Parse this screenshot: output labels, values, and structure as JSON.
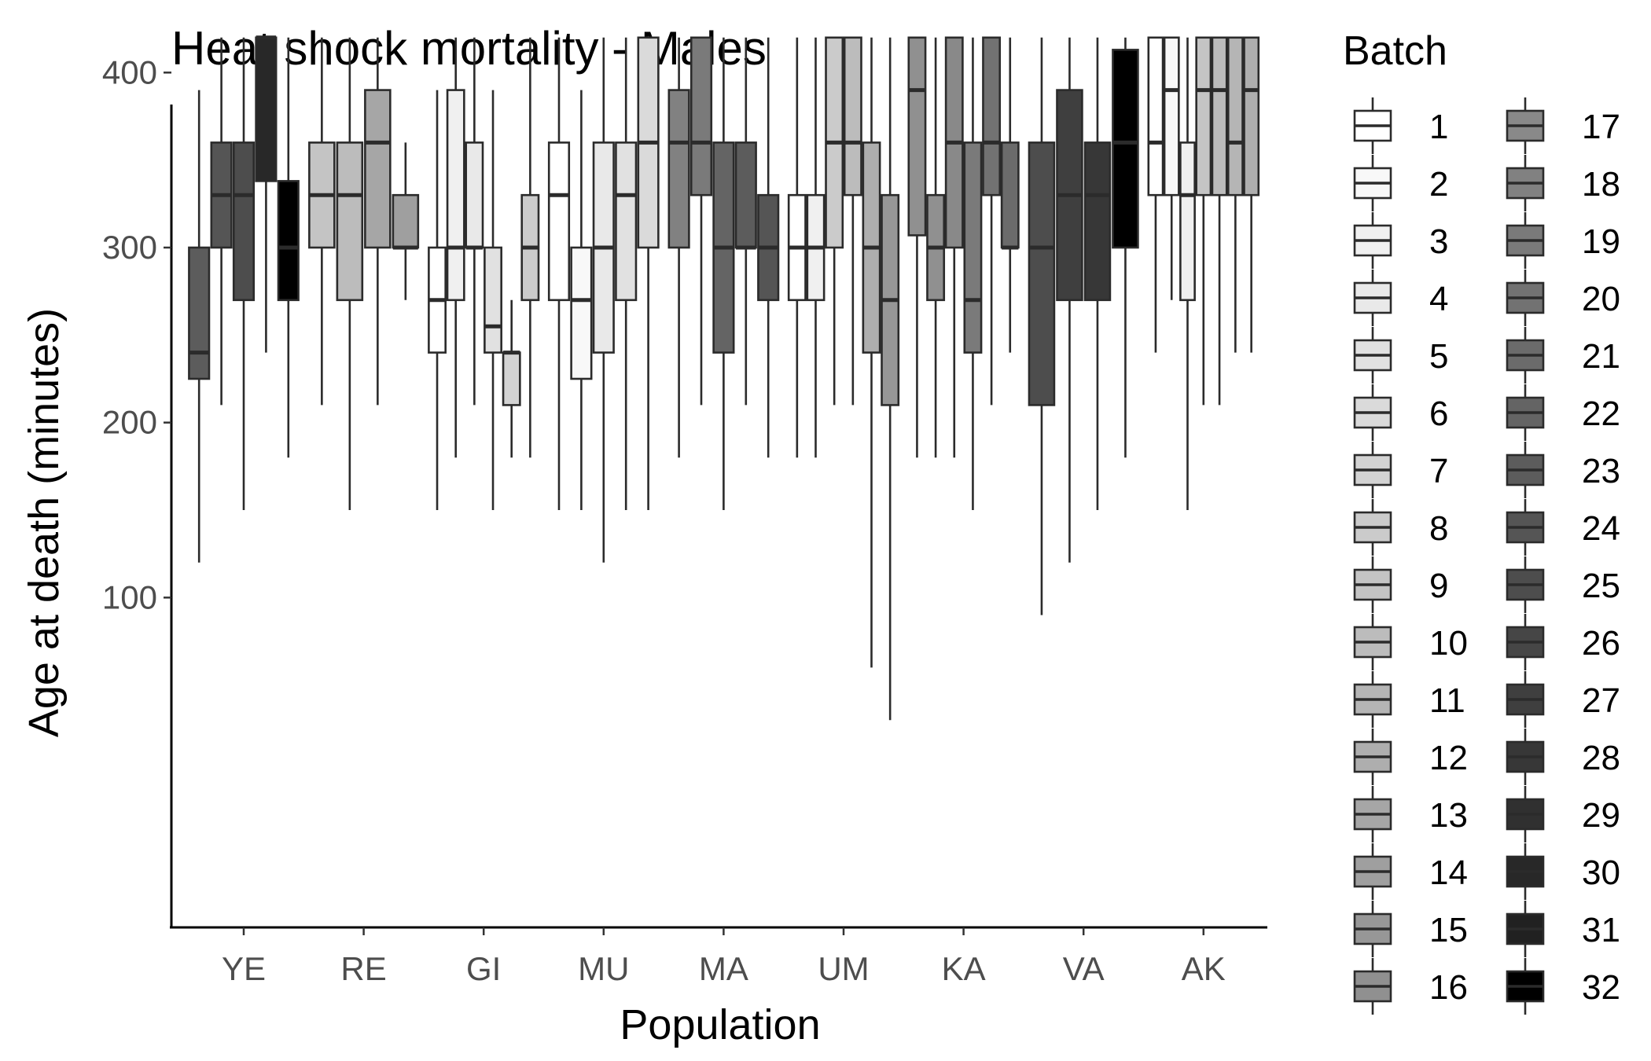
{
  "chart_data": {
    "type": "boxplot",
    "title": "Heat shock mortality - Males",
    "xlabel": "Population",
    "ylabel": "Age at death (minutes)",
    "categories": [
      "YE",
      "RE",
      "GI",
      "MU",
      "MA",
      "UM",
      "KA",
      "VA",
      "AK"
    ],
    "y_ticks": [
      100,
      200,
      300,
      400
    ],
    "ylim": [
      30,
      430
    ],
    "grid": false,
    "legend": {
      "title": "Batch",
      "position": "right",
      "columns": 2,
      "entries": [
        "1",
        "2",
        "3",
        "4",
        "5",
        "6",
        "7",
        "8",
        "9",
        "10",
        "11",
        "12",
        "13",
        "14",
        "15",
        "16",
        "17",
        "18",
        "19",
        "20",
        "21",
        "22",
        "23",
        "24",
        "25",
        "26",
        "27",
        "28",
        "29",
        "30",
        "31",
        "32"
      ]
    },
    "series": [
      {
        "population": "YE",
        "batch": 23,
        "min": 120,
        "q1": 225,
        "median": 240,
        "q3": 300,
        "max": 390
      },
      {
        "population": "YE",
        "batch": 24,
        "min": 210,
        "q1": 300,
        "median": 330,
        "q3": 360,
        "max": 420
      },
      {
        "population": "YE",
        "batch": 25,
        "min": 150,
        "q1": 270,
        "median": 330,
        "q3": 360,
        "max": 420
      },
      {
        "population": "YE",
        "batch": 30,
        "min": 240,
        "q1": 338,
        "median": 420,
        "q3": 420,
        "max": 420
      },
      {
        "population": "YE",
        "batch": 32,
        "min": 180,
        "q1": 270,
        "median": 300,
        "q3": 338,
        "max": 420
      },
      {
        "population": "RE",
        "batch": 9,
        "min": 210,
        "q1": 300,
        "median": 330,
        "q3": 360,
        "max": 420
      },
      {
        "population": "RE",
        "batch": 10,
        "min": 150,
        "q1": 270,
        "median": 330,
        "q3": 360,
        "max": 420
      },
      {
        "population": "RE",
        "batch": 13,
        "min": 210,
        "q1": 300,
        "median": 360,
        "q3": 390,
        "max": 420
      },
      {
        "population": "RE",
        "batch": 14,
        "min": 270,
        "q1": 300,
        "median": 300,
        "q3": 330,
        "max": 360
      },
      {
        "population": "GI",
        "batch": 1,
        "min": 150,
        "q1": 240,
        "median": 270,
        "q3": 300,
        "max": 390
      },
      {
        "population": "GI",
        "batch": 3,
        "min": 180,
        "q1": 270,
        "median": 300,
        "q3": 390,
        "max": 420
      },
      {
        "population": "GI",
        "batch": 4,
        "min": 210,
        "q1": 300,
        "median": 300,
        "q3": 360,
        "max": 420
      },
      {
        "population": "GI",
        "batch": 5,
        "min": 150,
        "q1": 240,
        "median": 255,
        "q3": 300,
        "max": 390
      },
      {
        "population": "GI",
        "batch": 7,
        "min": 180,
        "q1": 210,
        "median": 240,
        "q3": 240,
        "max": 270
      },
      {
        "population": "GI",
        "batch": 8,
        "min": 180,
        "q1": 270,
        "median": 300,
        "q3": 330,
        "max": 420
      },
      {
        "population": "MU",
        "batch": 1,
        "min": 150,
        "q1": 270,
        "median": 330,
        "q3": 360,
        "max": 420
      },
      {
        "population": "MU",
        "batch": 2,
        "min": 150,
        "q1": 225,
        "median": 270,
        "q3": 300,
        "max": 390
      },
      {
        "population": "MU",
        "batch": 4,
        "min": 120,
        "q1": 240,
        "median": 300,
        "q3": 360,
        "max": 420
      },
      {
        "population": "MU",
        "batch": 5,
        "min": 150,
        "q1": 270,
        "median": 330,
        "q3": 360,
        "max": 420
      },
      {
        "population": "MU",
        "batch": 6,
        "min": 150,
        "q1": 300,
        "median": 360,
        "q3": 420,
        "max": 420
      },
      {
        "population": "MA",
        "batch": 18,
        "min": 180,
        "q1": 300,
        "median": 360,
        "q3": 390,
        "max": 420
      },
      {
        "population": "MA",
        "batch": 19,
        "min": 210,
        "q1": 330,
        "median": 360,
        "q3": 420,
        "max": 420
      },
      {
        "population": "MA",
        "batch": 22,
        "min": 150,
        "q1": 240,
        "median": 300,
        "q3": 360,
        "max": 420
      },
      {
        "population": "MA",
        "batch": 23,
        "min": 210,
        "q1": 300,
        "median": 300,
        "q3": 360,
        "max": 420
      },
      {
        "population": "MA",
        "batch": 24,
        "min": 180,
        "q1": 270,
        "median": 300,
        "q3": 330,
        "max": 420
      },
      {
        "population": "UM",
        "batch": 1,
        "min": 180,
        "q1": 270,
        "median": 300,
        "q3": 330,
        "max": 420
      },
      {
        "population": "UM",
        "batch": 3,
        "min": 180,
        "q1": 270,
        "median": 300,
        "q3": 330,
        "max": 420
      },
      {
        "population": "UM",
        "batch": 8,
        "min": 210,
        "q1": 300,
        "median": 360,
        "q3": 420,
        "max": 420
      },
      {
        "population": "UM",
        "batch": 10,
        "min": 210,
        "q1": 330,
        "median": 360,
        "q3": 420,
        "max": 420
      },
      {
        "population": "UM",
        "batch": 12,
        "min": 60,
        "q1": 240,
        "median": 300,
        "q3": 360,
        "max": 420
      },
      {
        "population": "UM",
        "batch": 15,
        "min": 30,
        "q1": 210,
        "median": 270,
        "q3": 330,
        "max": 420
      },
      {
        "population": "KA",
        "batch": 16,
        "min": 180,
        "q1": 307,
        "median": 390,
        "q3": 420,
        "max": 420
      },
      {
        "population": "KA",
        "batch": 16,
        "min": 180,
        "q1": 270,
        "median": 300,
        "q3": 330,
        "max": 420
      },
      {
        "population": "KA",
        "batch": 17,
        "min": 180,
        "q1": 300,
        "median": 360,
        "q3": 420,
        "max": 420
      },
      {
        "population": "KA",
        "batch": 19,
        "min": 150,
        "q1": 240,
        "median": 270,
        "q3": 360,
        "max": 420
      },
      {
        "population": "KA",
        "batch": 20,
        "min": 210,
        "q1": 330,
        "median": 360,
        "q3": 420,
        "max": 420
      },
      {
        "population": "KA",
        "batch": 21,
        "min": 240,
        "q1": 300,
        "median": 300,
        "q3": 360,
        "max": 420
      },
      {
        "population": "VA",
        "batch": 25,
        "min": 90,
        "q1": 210,
        "median": 300,
        "q3": 360,
        "max": 420
      },
      {
        "population": "VA",
        "batch": 27,
        "min": 120,
        "q1": 270,
        "median": 330,
        "q3": 390,
        "max": 420
      },
      {
        "population": "VA",
        "batch": 28,
        "min": 150,
        "q1": 270,
        "median": 330,
        "q3": 360,
        "max": 420
      },
      {
        "population": "VA",
        "batch": 32,
        "min": 180,
        "q1": 300,
        "median": 360,
        "q3": 413,
        "max": 420
      },
      {
        "population": "AK",
        "batch": 1,
        "min": 240,
        "q1": 330,
        "median": 360,
        "q3": 420,
        "max": 420
      },
      {
        "population": "AK",
        "batch": 2,
        "min": 270,
        "q1": 330,
        "median": 390,
        "q3": 420,
        "max": 420
      },
      {
        "population": "AK",
        "batch": 3,
        "min": 150,
        "q1": 270,
        "median": 330,
        "q3": 360,
        "max": 420
      },
      {
        "population": "AK",
        "batch": 9,
        "min": 210,
        "q1": 330,
        "median": 390,
        "q3": 420,
        "max": 420
      },
      {
        "population": "AK",
        "batch": 10,
        "min": 210,
        "q1": 330,
        "median": 390,
        "q3": 420,
        "max": 420
      },
      {
        "population": "AK",
        "batch": 11,
        "min": 240,
        "q1": 330,
        "median": 360,
        "q3": 420,
        "max": 420
      },
      {
        "population": "AK",
        "batch": 12,
        "min": 240,
        "q1": 330,
        "median": 390,
        "q3": 420,
        "max": 420
      }
    ]
  }
}
